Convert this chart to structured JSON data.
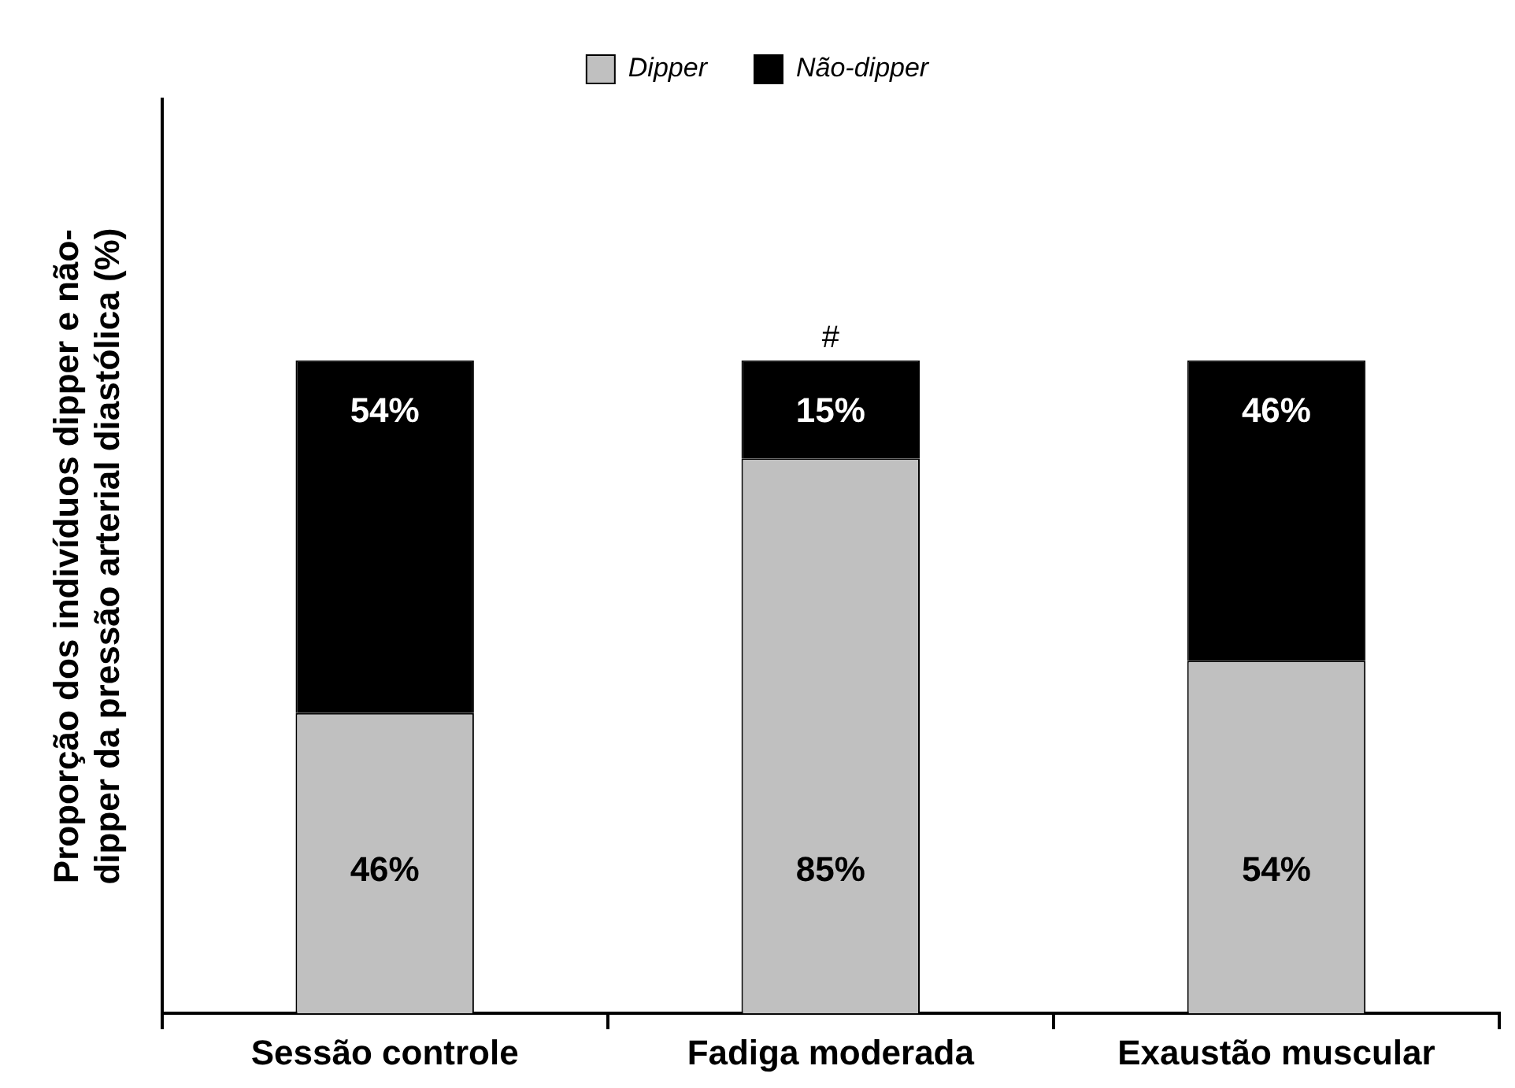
{
  "chart_data": {
    "type": "bar",
    "stacked": true,
    "ylabel": "Proporção dos indivíduos dipper e não-\ndipper da pressão arterial diastólica (%)",
    "categories": [
      "Sessão controle",
      "Fadiga moderada",
      "Exaustão muscular"
    ],
    "series": [
      {
        "name": "Dipper",
        "color": "#c0c0c0",
        "values": [
          46,
          85,
          54
        ],
        "value_labels": [
          "46%",
          "85%",
          "54%"
        ]
      },
      {
        "name": "Não-dipper",
        "color": "#000000",
        "values": [
          54,
          15,
          46
        ],
        "value_labels": [
          "54%",
          "15%",
          "46%"
        ]
      }
    ],
    "tick_labels": "x",
    "legend": "top",
    "grid": false,
    "annotations": [
      {
        "text": "#",
        "x": "Fadiga moderada",
        "y": 100
      }
    ]
  }
}
